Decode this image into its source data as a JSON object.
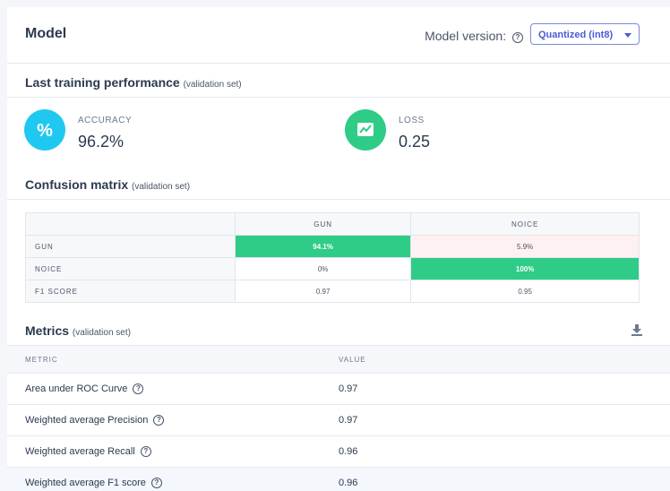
{
  "header": {
    "title": "Model",
    "version_label": "Model version:",
    "version_value": "Quantized (int8)"
  },
  "performance": {
    "title": "Last training performance",
    "subtitle": "(validation set)",
    "accuracy": {
      "label": "ACCURACY",
      "value": "96.2%",
      "color": "#1ec8f0",
      "icon": "percent-icon"
    },
    "loss": {
      "label": "LOSS",
      "value": "0.25",
      "color": "#2ecc87",
      "icon": "chart-icon"
    }
  },
  "confusion": {
    "title": "Confusion matrix",
    "subtitle": "(validation set)",
    "columns": [
      "GUN",
      "NOICE"
    ],
    "rows": [
      {
        "label": "GUN",
        "cells": [
          "94.1%",
          "5.9%"
        ]
      },
      {
        "label": "NOICE",
        "cells": [
          "0%",
          "100%"
        ]
      },
      {
        "label": "F1 SCORE",
        "cells": [
          "0.97",
          "0.95"
        ]
      }
    ]
  },
  "metrics": {
    "title": "Metrics",
    "subtitle": "(validation set)",
    "col_metric": "METRIC",
    "col_value": "VALUE",
    "rows": [
      {
        "name": "Area under ROC Curve",
        "value": "0.97"
      },
      {
        "name": "Weighted average Precision",
        "value": "0.97"
      },
      {
        "name": "Weighted average Recall",
        "value": "0.96"
      },
      {
        "name": "Weighted average F1 score",
        "value": "0.96"
      }
    ]
  }
}
